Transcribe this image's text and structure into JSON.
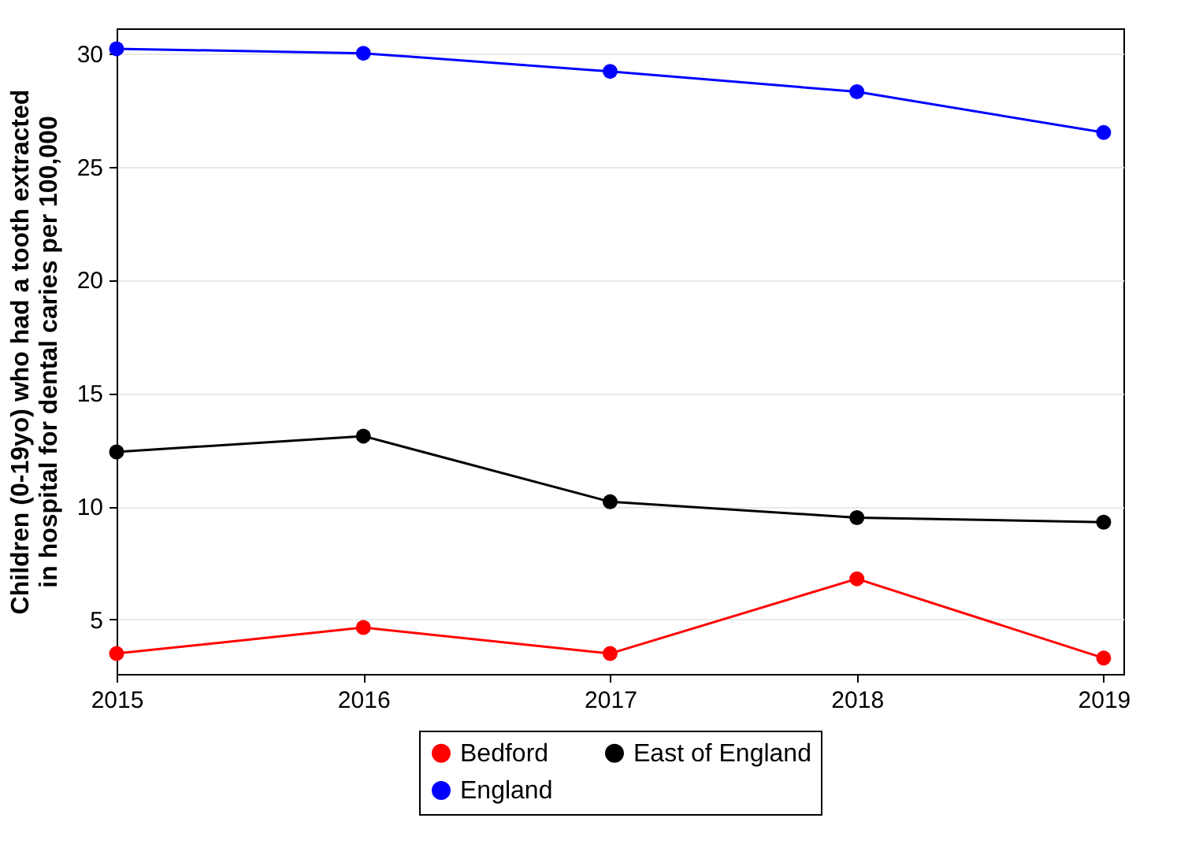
{
  "chart_data": {
    "type": "line",
    "ylabel": "Children (0-19yo) who had a tooth extracted in hospital for dental caries per 100,000",
    "x": [
      2015,
      2016,
      2017,
      2018,
      2019
    ],
    "series": [
      {
        "name": "Bedford",
        "color": "#ff0000",
        "values": [
          3.5,
          4.65,
          3.5,
          6.8,
          3.3
        ]
      },
      {
        "name": "East of England",
        "color": "#000000",
        "values": [
          12.4,
          13.1,
          10.2,
          9.5,
          9.3
        ]
      },
      {
        "name": "England",
        "color": "#0000ff",
        "values": [
          30.2,
          30.0,
          29.2,
          28.3,
          26.5
        ]
      }
    ],
    "xlim": [
      2015,
      2019.08
    ],
    "xticks": [
      2015,
      2016,
      2017,
      2018,
      2019
    ],
    "ylim": [
      2.6,
      31.1
    ],
    "yticks": [
      5,
      10,
      15,
      20,
      25,
      30
    ],
    "grid": "y",
    "legend": "bottom",
    "marker": "circle",
    "line_style": "solid"
  }
}
